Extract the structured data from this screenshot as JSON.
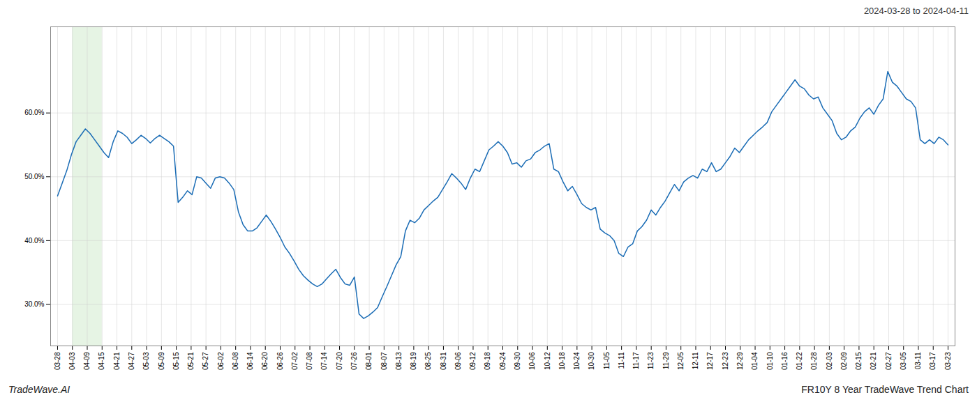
{
  "chart_data": {
    "type": "line",
    "title": "FR10Y 8 Year TradeWave Trend Chart",
    "subtitle": "2024-03-28 to 2024-04-11",
    "annotations": [
      "TradeWave.AI"
    ],
    "color": "#1a6cb5",
    "grid": true,
    "highlight": {
      "start": 3.2,
      "end": 9.6,
      "color": "#d6ecd2"
    },
    "xlim": [
      -1.5,
      193.5
    ],
    "xticks": [
      {
        "value": 0,
        "label": "03-28"
      },
      {
        "value": 3.2,
        "label": "04-03"
      },
      {
        "value": 6.4,
        "label": "04-09"
      },
      {
        "value": 9.6,
        "label": "04-15"
      },
      {
        "value": 12.8,
        "label": "04-21"
      },
      {
        "value": 16,
        "label": "04-27"
      },
      {
        "value": 19.2,
        "label": "05-03"
      },
      {
        "value": 22.4,
        "label": "05-09"
      },
      {
        "value": 25.6,
        "label": "05-15"
      },
      {
        "value": 28.8,
        "label": "05-21"
      },
      {
        "value": 32,
        "label": "05-27"
      },
      {
        "value": 35.2,
        "label": "06-02"
      },
      {
        "value": 38.4,
        "label": "06-08"
      },
      {
        "value": 41.6,
        "label": "06-14"
      },
      {
        "value": 44.8,
        "label": "06-20"
      },
      {
        "value": 48,
        "label": "06-26"
      },
      {
        "value": 51.2,
        "label": "07-02"
      },
      {
        "value": 54.4,
        "label": "07-08"
      },
      {
        "value": 57.6,
        "label": "07-14"
      },
      {
        "value": 60.8,
        "label": "07-20"
      },
      {
        "value": 64,
        "label": "07-26"
      },
      {
        "value": 67.2,
        "label": "08-01"
      },
      {
        "value": 70.4,
        "label": "08-07"
      },
      {
        "value": 73.6,
        "label": "08-13"
      },
      {
        "value": 76.8,
        "label": "08-19"
      },
      {
        "value": 80,
        "label": "08-25"
      },
      {
        "value": 83.2,
        "label": "08-31"
      },
      {
        "value": 86.4,
        "label": "09-06"
      },
      {
        "value": 89.6,
        "label": "09-12"
      },
      {
        "value": 92.8,
        "label": "09-18"
      },
      {
        "value": 96,
        "label": "09-24"
      },
      {
        "value": 99.2,
        "label": "09-30"
      },
      {
        "value": 102.4,
        "label": "10-06"
      },
      {
        "value": 105.6,
        "label": "10-12"
      },
      {
        "value": 108.8,
        "label": "10-18"
      },
      {
        "value": 112,
        "label": "10-24"
      },
      {
        "value": 115.2,
        "label": "10-30"
      },
      {
        "value": 118.4,
        "label": "11-05"
      },
      {
        "value": 121.6,
        "label": "11-11"
      },
      {
        "value": 124.8,
        "label": "11-17"
      },
      {
        "value": 128,
        "label": "11-23"
      },
      {
        "value": 131.2,
        "label": "11-29"
      },
      {
        "value": 134.4,
        "label": "12-05"
      },
      {
        "value": 137.6,
        "label": "12-11"
      },
      {
        "value": 140.8,
        "label": "12-17"
      },
      {
        "value": 144,
        "label": "12-23"
      },
      {
        "value": 147.2,
        "label": "12-29"
      },
      {
        "value": 150.4,
        "label": "01-04"
      },
      {
        "value": 153.6,
        "label": "01-10"
      },
      {
        "value": 156.8,
        "label": "01-16"
      },
      {
        "value": 160,
        "label": "01-22"
      },
      {
        "value": 163.2,
        "label": "01-28"
      },
      {
        "value": 166.4,
        "label": "02-03"
      },
      {
        "value": 169.6,
        "label": "02-09"
      },
      {
        "value": 172.8,
        "label": "02-15"
      },
      {
        "value": 176,
        "label": "02-21"
      },
      {
        "value": 179.2,
        "label": "02-27"
      },
      {
        "value": 182.4,
        "label": "03-05"
      },
      {
        "value": 185.6,
        "label": "03-11"
      },
      {
        "value": 188.8,
        "label": "03-17"
      },
      {
        "value": 192,
        "label": "03-23"
      }
    ],
    "ylim": [
      0.235,
      0.735
    ],
    "yticks": [
      {
        "value": 0.3,
        "label": "30.0%"
      },
      {
        "value": 0.4,
        "label": "40.0%"
      },
      {
        "value": 0.5,
        "label": "50.0%"
      },
      {
        "value": 0.6,
        "label": "60.0%"
      }
    ],
    "x": [
      0,
      1,
      2,
      3,
      4,
      5,
      6,
      7,
      8,
      9,
      10,
      11,
      12,
      13,
      14,
      15,
      16,
      17,
      18,
      19,
      20,
      21,
      22,
      23,
      24,
      25,
      26,
      27,
      28,
      29,
      30,
      31,
      32,
      33,
      34,
      35,
      36,
      37,
      38,
      39,
      40,
      41,
      42,
      43,
      44,
      45,
      46,
      47,
      48,
      49,
      50,
      51,
      52,
      53,
      54,
      55,
      56,
      57,
      58,
      59,
      60,
      61,
      62,
      63,
      64,
      65,
      66,
      67,
      68,
      69,
      70,
      71,
      72,
      73,
      74,
      75,
      76,
      77,
      78,
      79,
      80,
      81,
      82,
      83,
      84,
      85,
      86,
      87,
      88,
      89,
      90,
      91,
      92,
      93,
      94,
      95,
      96,
      97,
      98,
      99,
      100,
      101,
      102,
      103,
      104,
      105,
      106,
      107,
      108,
      109,
      110,
      111,
      112,
      113,
      114,
      115,
      116,
      117,
      118,
      119,
      120,
      121,
      122,
      123,
      124,
      125,
      126,
      127,
      128,
      129,
      130,
      131,
      132,
      133,
      134,
      135,
      136,
      137,
      138,
      139,
      140,
      141,
      142,
      143,
      144,
      145,
      146,
      147,
      148,
      149,
      150,
      151,
      152,
      153,
      154,
      155,
      156,
      157,
      158,
      159,
      160,
      161,
      162,
      163,
      164,
      165,
      166,
      167,
      168,
      169,
      170,
      171,
      172,
      173,
      174,
      175,
      176,
      177,
      178,
      179,
      180,
      181,
      182,
      183,
      184,
      185,
      186,
      187,
      188,
      189,
      190,
      191,
      192
    ],
    "values": [
      0.47,
      0.49,
      0.51,
      0.535,
      0.555,
      0.565,
      0.575,
      0.568,
      0.558,
      0.548,
      0.538,
      0.53,
      0.555,
      0.572,
      0.568,
      0.562,
      0.552,
      0.558,
      0.565,
      0.56,
      0.553,
      0.56,
      0.565,
      0.56,
      0.555,
      0.548,
      0.46,
      0.468,
      0.478,
      0.472,
      0.5,
      0.498,
      0.49,
      0.482,
      0.498,
      0.5,
      0.498,
      0.49,
      0.48,
      0.445,
      0.425,
      0.415,
      0.415,
      0.42,
      0.43,
      0.44,
      0.43,
      0.418,
      0.405,
      0.39,
      0.38,
      0.368,
      0.355,
      0.345,
      0.338,
      0.332,
      0.328,
      0.332,
      0.34,
      0.348,
      0.355,
      0.342,
      0.332,
      0.33,
      0.343,
      0.285,
      0.278,
      0.282,
      0.288,
      0.295,
      0.312,
      0.328,
      0.345,
      0.362,
      0.375,
      0.415,
      0.432,
      0.428,
      0.435,
      0.448,
      0.455,
      0.462,
      0.468,
      0.48,
      0.492,
      0.505,
      0.498,
      0.49,
      0.48,
      0.498,
      0.512,
      0.508,
      0.525,
      0.542,
      0.548,
      0.555,
      0.548,
      0.538,
      0.52,
      0.522,
      0.515,
      0.525,
      0.528,
      0.538,
      0.542,
      0.548,
      0.552,
      0.512,
      0.508,
      0.492,
      0.478,
      0.485,
      0.472,
      0.458,
      0.452,
      0.448,
      0.452,
      0.418,
      0.412,
      0.408,
      0.4,
      0.38,
      0.375,
      0.39,
      0.395,
      0.415,
      0.422,
      0.432,
      0.448,
      0.44,
      0.452,
      0.462,
      0.475,
      0.488,
      0.478,
      0.492,
      0.498,
      0.502,
      0.498,
      0.512,
      0.508,
      0.522,
      0.508,
      0.512,
      0.522,
      0.532,
      0.545,
      0.538,
      0.548,
      0.558,
      0.565,
      0.572,
      0.578,
      0.585,
      0.602,
      0.612,
      0.622,
      0.632,
      0.642,
      0.652,
      0.642,
      0.638,
      0.628,
      0.622,
      0.625,
      0.608,
      0.598,
      0.588,
      0.568,
      0.558,
      0.562,
      0.572,
      0.578,
      0.592,
      0.602,
      0.608,
      0.598,
      0.612,
      0.622,
      0.665,
      0.648,
      0.642,
      0.632,
      0.622,
      0.618,
      0.608,
      0.558,
      0.552,
      0.558,
      0.552,
      0.562,
      0.558,
      0.55
    ]
  }
}
